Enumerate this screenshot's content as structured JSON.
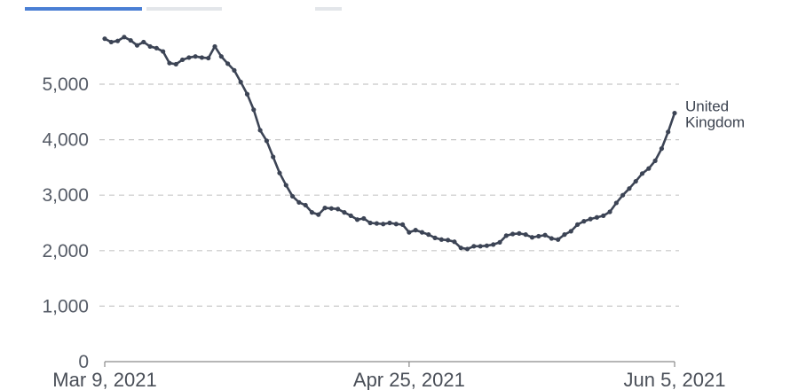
{
  "chart_data": {
    "type": "line",
    "title": "",
    "xlabel": "",
    "ylabel": "",
    "ylim": [
      0,
      6000
    ],
    "yticks": [
      0,
      1000,
      2000,
      3000,
      4000,
      5000
    ],
    "ytick_labels": [
      "0",
      "1,000",
      "2,000",
      "3,000",
      "4,000",
      "5,000"
    ],
    "xlim": [
      "2021-03-09",
      "2021-06-05"
    ],
    "xticks": [
      "2021-03-09",
      "2021-04-25",
      "2021-06-05"
    ],
    "xtick_labels": [
      "Mar 9, 2021",
      "Apr 25, 2021",
      "Jun 5, 2021"
    ],
    "grid": "horizontal dashed",
    "series": [
      {
        "name": "United Kingdom",
        "color": "#3c4455",
        "x": [
          "2021-03-09",
          "2021-03-10",
          "2021-03-11",
          "2021-03-12",
          "2021-03-13",
          "2021-03-14",
          "2021-03-15",
          "2021-03-16",
          "2021-03-17",
          "2021-03-18",
          "2021-03-19",
          "2021-03-20",
          "2021-03-21",
          "2021-03-22",
          "2021-03-23",
          "2021-03-24",
          "2021-03-25",
          "2021-03-26",
          "2021-03-27",
          "2021-03-28",
          "2021-03-29",
          "2021-03-30",
          "2021-03-31",
          "2021-04-01",
          "2021-04-02",
          "2021-04-03",
          "2021-04-04",
          "2021-04-05",
          "2021-04-06",
          "2021-04-07",
          "2021-04-08",
          "2021-04-09",
          "2021-04-10",
          "2021-04-11",
          "2021-04-12",
          "2021-04-13",
          "2021-04-14",
          "2021-04-15",
          "2021-04-16",
          "2021-04-17",
          "2021-04-18",
          "2021-04-19",
          "2021-04-20",
          "2021-04-21",
          "2021-04-22",
          "2021-04-23",
          "2021-04-24",
          "2021-04-25",
          "2021-04-26",
          "2021-04-27",
          "2021-04-28",
          "2021-04-29",
          "2021-04-30",
          "2021-05-01",
          "2021-05-02",
          "2021-05-03",
          "2021-05-04",
          "2021-05-05",
          "2021-05-06",
          "2021-05-07",
          "2021-05-08",
          "2021-05-09",
          "2021-05-10",
          "2021-05-11",
          "2021-05-12",
          "2021-05-13",
          "2021-05-14",
          "2021-05-15",
          "2021-05-16",
          "2021-05-17",
          "2021-05-18",
          "2021-05-19",
          "2021-05-20",
          "2021-05-21",
          "2021-05-22",
          "2021-05-23",
          "2021-05-24",
          "2021-05-25",
          "2021-05-26",
          "2021-05-27",
          "2021-05-28",
          "2021-05-29",
          "2021-05-30",
          "2021-05-31",
          "2021-06-01",
          "2021-06-02",
          "2021-06-03",
          "2021-06-04",
          "2021-06-05"
        ],
        "values": [
          5820,
          5760,
          5780,
          5850,
          5790,
          5700,
          5760,
          5680,
          5650,
          5590,
          5380,
          5360,
          5440,
          5480,
          5500,
          5480,
          5470,
          5680,
          5500,
          5370,
          5250,
          5040,
          4820,
          4540,
          4170,
          3980,
          3690,
          3400,
          3180,
          2980,
          2870,
          2820,
          2690,
          2650,
          2770,
          2760,
          2750,
          2690,
          2630,
          2560,
          2580,
          2500,
          2490,
          2480,
          2500,
          2480,
          2470,
          2330,
          2370,
          2330,
          2290,
          2230,
          2200,
          2190,
          2160,
          2050,
          2030,
          2080,
          2080,
          2090,
          2110,
          2150,
          2270,
          2300,
          2310,
          2290,
          2240,
          2260,
          2280,
          2220,
          2200,
          2290,
          2350,
          2470,
          2530,
          2570,
          2600,
          2630,
          2700,
          2860,
          3000,
          3120,
          3250,
          3390,
          3480,
          3620,
          3840,
          4140,
          4480
        ]
      }
    ],
    "annotations": [
      {
        "text_lines": [
          "United",
          "Kingdom"
        ]
      }
    ]
  },
  "header": {
    "tab_colors": [
      "#4a7fd4",
      "#e3e6ea",
      "#e3e6ea"
    ]
  }
}
